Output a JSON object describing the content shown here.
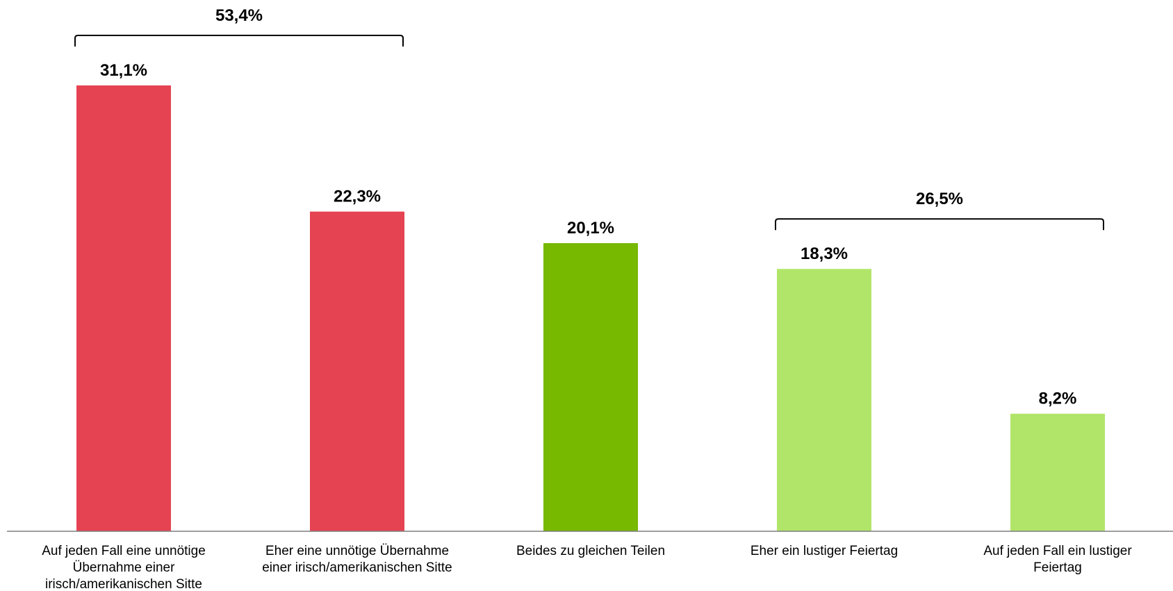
{
  "chart_data": {
    "type": "bar",
    "categories": [
      [
        "Auf jeden Fall eine unnötige",
        "Übernahme einer",
        "irisch/amerikanischen Sitte"
      ],
      [
        "Eher eine unnötige Übernahme",
        "einer irisch/amerikanischen Sitte"
      ],
      [
        "Beides zu gleichen Teilen"
      ],
      [
        "Eher ein lustiger Feiertag"
      ],
      [
        "Auf jeden Fall ein lustiger",
        "Feiertag"
      ]
    ],
    "values": [
      31.1,
      22.3,
      20.1,
      18.3,
      8.2
    ],
    "value_labels": [
      "31,1%",
      "22,3%",
      "20,1%",
      "18,3%",
      "8,2%"
    ],
    "colors": [
      "#e64352",
      "#e64352",
      "#77b800",
      "#b1e56a",
      "#b1e56a"
    ],
    "ylim": [
      0,
      31.1
    ],
    "axis_color": "#7f7f7f",
    "groups": [
      {
        "from": 0,
        "to": 1,
        "label": "53,4%",
        "value": 53.4
      },
      {
        "from": 3,
        "to": 4,
        "label": "26,5%",
        "value": 26.5
      }
    ]
  }
}
